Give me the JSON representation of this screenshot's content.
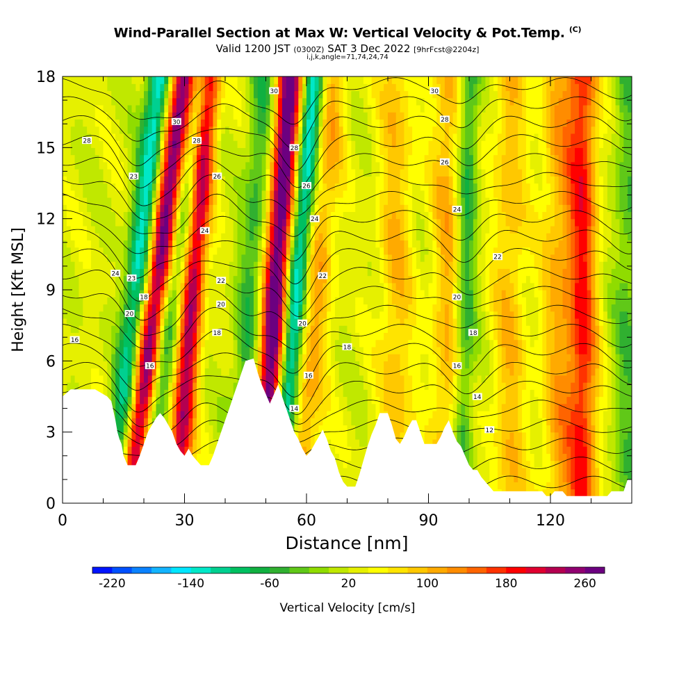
{
  "header": {
    "title": "Wind-Parallel Section at Max W: Vertical Velocity & Pot.Temp.",
    "copyright": "(C)",
    "subtitle_main": "Valid 1200 JST",
    "subtitle_utc": "(0300Z)",
    "subtitle_date": "SAT 3 Dec 2022",
    "subtitle_fcst": "[9hrFcst@2204z]",
    "indices": "i,j,k,angle=71,74,24,74"
  },
  "chart_data": {
    "type": "heatmap",
    "title": "Wind-Parallel Section at Max W: Vertical Velocity & Pot.Temp.",
    "xlabel": "Distance [nm]",
    "ylabel": "Height [Kft MSL]",
    "xlim": [
      0,
      140
    ],
    "ylim": [
      0,
      18
    ],
    "x_ticks": [
      0,
      30,
      60,
      90,
      120
    ],
    "x_tick_labels": [
      "0",
      "30",
      "60",
      "90",
      "120"
    ],
    "y_ticks": [
      0,
      3,
      6,
      9,
      12,
      15,
      18
    ],
    "y_tick_labels": [
      "0",
      "3",
      "6",
      "9",
      "12",
      "15",
      "18"
    ],
    "colorbar": {
      "label": "Vertical Velocity [cm/s]",
      "min": -240,
      "max": 280,
      "step": 20,
      "tick_values": [
        -220,
        -140,
        -60,
        20,
        100,
        180,
        260
      ],
      "tick_labels": [
        "-220",
        "-140",
        "-60",
        "20",
        "100",
        "180",
        "260"
      ],
      "colors": [
        "#0014ff",
        "#0050ff",
        "#0a82ff",
        "#13b4ff",
        "#00e6ff",
        "#00e8c8",
        "#00d090",
        "#00c060",
        "#10b040",
        "#30b030",
        "#60c818",
        "#90dc00",
        "#c0e800",
        "#e6f000",
        "#ffff00",
        "#ffe400",
        "#ffc800",
        "#ffaa00",
        "#ff8c00",
        "#ff6400",
        "#ff3200",
        "#ff0000",
        "#e00030",
        "#b40050",
        "#900070",
        "#6c0080"
      ]
    },
    "updraft_plumes": [
      {
        "x0": 16,
        "x1": 30,
        "peak": 260,
        "width": 2.6
      },
      {
        "x0": 28,
        "x1": 36,
        "peak": 210,
        "width": 2.0
      },
      {
        "x0": 49,
        "x1": 56,
        "peak": 270,
        "width": 2.4
      },
      {
        "x0": 58,
        "x1": 66,
        "peak": 90,
        "width": 3.0
      },
      {
        "x0": 82,
        "x1": 82,
        "peak": 70,
        "width": 3.0
      },
      {
        "x0": 95,
        "x1": 95,
        "peak": 80,
        "width": 3.0
      },
      {
        "x0": 110,
        "x1": 110,
        "peak": 70,
        "width": 3.0
      },
      {
        "x0": 122,
        "x1": 122,
        "peak": 80,
        "width": 3.0
      },
      {
        "x0": 128,
        "x1": 128,
        "peak": 150,
        "width": 2.5
      }
    ],
    "downdraft_plumes": [
      {
        "x0": 13,
        "x1": 24,
        "peak": -180,
        "width": 2.2
      },
      {
        "x0": 20,
        "x1": 34,
        "peak": -120,
        "width": 2.0
      },
      {
        "x0": 53,
        "x1": 62,
        "peak": -200,
        "width": 2.0
      },
      {
        "x0": 43,
        "x1": 50,
        "peak": -80,
        "width": 2.5
      },
      {
        "x0": 98,
        "x1": 100,
        "peak": -100,
        "width": 1.8
      },
      {
        "x0": 139,
        "x1": 139,
        "peak": -60,
        "width": 2.5
      }
    ],
    "theta_contours": {
      "name": "Pot.Temp.",
      "base_value": 10,
      "interval": 1,
      "count": 22,
      "labels": [
        {
          "text": "28",
          "x": 6,
          "y": 15.3
        },
        {
          "text": "30",
          "x": 28,
          "y": 16.1
        },
        {
          "text": "28",
          "x": 33,
          "y": 15.3
        },
        {
          "text": "23",
          "x": 17.5,
          "y": 13.8
        },
        {
          "text": "26",
          "x": 38,
          "y": 13.8
        },
        {
          "text": "24",
          "x": 35,
          "y": 11.5
        },
        {
          "text": "24",
          "x": 13,
          "y": 9.7
        },
        {
          "text": "23",
          "x": 17,
          "y": 9.5
        },
        {
          "text": "22",
          "x": 39,
          "y": 9.4
        },
        {
          "text": "18",
          "x": 20,
          "y": 8.7
        },
        {
          "text": "20",
          "x": 16.5,
          "y": 8.0
        },
        {
          "text": "20",
          "x": 39,
          "y": 8.4
        },
        {
          "text": "16",
          "x": 3,
          "y": 6.9
        },
        {
          "text": "18",
          "x": 38,
          "y": 7.2
        },
        {
          "text": "16",
          "x": 21.5,
          "y": 5.8
        },
        {
          "text": "30",
          "x": 52,
          "y": 17.4
        },
        {
          "text": "28",
          "x": 57,
          "y": 15.0
        },
        {
          "text": "26",
          "x": 60,
          "y": 13.4
        },
        {
          "text": "24",
          "x": 62,
          "y": 12.0
        },
        {
          "text": "22",
          "x": 64,
          "y": 9.6
        },
        {
          "text": "20",
          "x": 59,
          "y": 7.6
        },
        {
          "text": "18",
          "x": 70,
          "y": 6.6
        },
        {
          "text": "16",
          "x": 60.5,
          "y": 5.4
        },
        {
          "text": "14",
          "x": 57,
          "y": 4.0
        },
        {
          "text": "30",
          "x": 91.5,
          "y": 17.4
        },
        {
          "text": "28",
          "x": 94,
          "y": 16.2
        },
        {
          "text": "26",
          "x": 94,
          "y": 14.4
        },
        {
          "text": "24",
          "x": 97,
          "y": 12.4
        },
        {
          "text": "22",
          "x": 107,
          "y": 10.4
        },
        {
          "text": "20",
          "x": 97,
          "y": 8.7
        },
        {
          "text": "18",
          "x": 101,
          "y": 7.2
        },
        {
          "text": "16",
          "x": 97,
          "y": 5.8
        },
        {
          "text": "14",
          "x": 102,
          "y": 4.5
        },
        {
          "text": "12",
          "x": 105,
          "y": 3.1
        }
      ]
    },
    "terrain_kft": [
      [
        0,
        4.5
      ],
      [
        2,
        4.8
      ],
      [
        8,
        4.8
      ],
      [
        11,
        4.5
      ],
      [
        12,
        4.3
      ],
      [
        13,
        3.5
      ],
      [
        13.5,
        3.0
      ],
      [
        14,
        2.7
      ],
      [
        14.5,
        2.5
      ],
      [
        15,
        2.0
      ],
      [
        15.5,
        1.8
      ],
      [
        16,
        1.6
      ],
      [
        18,
        1.6
      ],
      [
        19,
        2.0
      ],
      [
        20,
        2.5
      ],
      [
        21,
        3.0
      ],
      [
        22,
        3.3
      ],
      [
        23,
        3.6
      ],
      [
        24,
        3.8
      ],
      [
        25,
        3.6
      ],
      [
        26,
        3.3
      ],
      [
        27,
        3.0
      ],
      [
        28,
        2.5
      ],
      [
        29,
        2.2
      ],
      [
        30,
        2.0
      ],
      [
        31,
        2.3
      ],
      [
        32,
        2.0
      ],
      [
        33,
        1.8
      ],
      [
        34,
        1.6
      ],
      [
        36,
        1.6
      ],
      [
        37,
        2.0
      ],
      [
        38,
        2.5
      ],
      [
        39,
        3.0
      ],
      [
        40,
        3.5
      ],
      [
        41,
        4.0
      ],
      [
        42,
        4.5
      ],
      [
        43,
        5.0
      ],
      [
        44,
        5.5
      ],
      [
        45,
        6.0
      ],
      [
        47,
        6.1
      ],
      [
        48,
        5.5
      ],
      [
        49,
        5.0
      ],
      [
        50,
        4.6
      ],
      [
        51,
        4.2
      ],
      [
        52,
        4.6
      ],
      [
        53,
        5.0
      ],
      [
        54,
        4.5
      ],
      [
        55,
        4.0
      ],
      [
        56,
        3.5
      ],
      [
        57,
        3.0
      ],
      [
        58,
        2.7
      ],
      [
        59,
        2.3
      ],
      [
        60,
        2.0
      ],
      [
        61,
        2.2
      ],
      [
        62,
        2.5
      ],
      [
        63,
        2.8
      ],
      [
        64,
        3.1
      ],
      [
        65,
        2.7
      ],
      [
        66,
        2.2
      ],
      [
        67,
        1.9
      ],
      [
        68,
        1.3
      ],
      [
        69,
        0.9
      ],
      [
        70,
        0.7
      ],
      [
        72,
        0.7
      ],
      [
        73,
        1.2
      ],
      [
        74,
        1.8
      ],
      [
        75,
        2.4
      ],
      [
        76,
        2.9
      ],
      [
        77,
        3.3
      ],
      [
        78,
        3.8
      ],
      [
        80,
        3.8
      ],
      [
        81,
        3.3
      ],
      [
        82,
        2.7
      ],
      [
        83,
        2.5
      ],
      [
        84,
        2.8
      ],
      [
        85,
        3.2
      ],
      [
        86,
        3.5
      ],
      [
        87,
        3.5
      ],
      [
        88,
        3.0
      ],
      [
        89,
        2.5
      ],
      [
        92,
        2.5
      ],
      [
        93,
        2.8
      ],
      [
        94,
        3.2
      ],
      [
        95,
        3.5
      ],
      [
        96,
        3.0
      ],
      [
        97,
        2.6
      ],
      [
        98,
        2.4
      ],
      [
        99,
        2.0
      ],
      [
        100,
        1.6
      ],
      [
        101,
        1.4
      ],
      [
        102,
        1.4
      ],
      [
        103,
        1.1
      ],
      [
        104,
        0.9
      ],
      [
        105,
        0.7
      ],
      [
        106,
        0.5
      ],
      [
        118,
        0.5
      ],
      [
        119,
        0.3
      ],
      [
        120,
        0.3
      ],
      [
        121,
        0.5
      ],
      [
        123,
        0.5
      ],
      [
        124,
        0.3
      ],
      [
        134,
        0.3
      ],
      [
        135,
        0.5
      ],
      [
        138,
        0.5
      ],
      [
        139,
        1.0
      ],
      [
        140,
        1.0
      ]
    ]
  }
}
